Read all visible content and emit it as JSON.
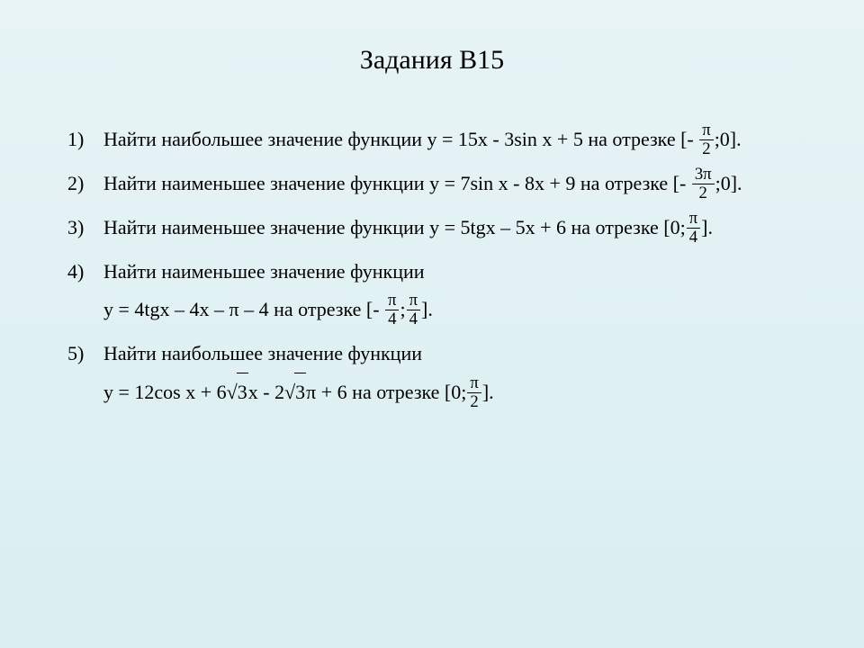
{
  "background": {
    "gradient_top": "#e8f4f6",
    "gradient_bottom": "#d9eef1"
  },
  "title": {
    "text": "Задания В15",
    "font_size": 30,
    "color": "#000000",
    "font_family": "Times New Roman"
  },
  "body": {
    "font_size": 22,
    "color": "#000000",
    "font_family": "Times New Roman"
  },
  "items": [
    {
      "number": "1)",
      "text_prefix": "Найти наибольшее значение функции y = 15x - 3",
      "trig1": "sin",
      "text_after_trig1": " x + 5 на отрезке [- ",
      "frac1_num": "π",
      "frac1_den": "2",
      "text_suffix": ";0]."
    },
    {
      "number": "2)",
      "text_prefix": "Найти наименьшее значение функции y = 7",
      "trig1": "sin",
      "text_after_trig1": " x - 8x + 9 на отрезке [- ",
      "frac1_num": "3π",
      "frac1_den": "2",
      "text_suffix": ";0]."
    },
    {
      "number": "3)",
      "text_prefix": "Найти наименьшее значение функции y = 5tgx – 5x + 6 на отрезке [0;",
      "frac1_num": "π",
      "frac1_den": "4",
      "text_suffix": "]."
    },
    {
      "number": "4)",
      "line1": "Найти наименьшее значение функции",
      "line2_prefix": "y = 4tgx – 4x – π – 4 на отрезке [- ",
      "frac1_num": "π",
      "frac1_den": "4",
      "mid": ";",
      "frac2_num": "π",
      "frac2_den": "4",
      "line2_suffix": "]."
    },
    {
      "number": "5)",
      "line1": "Найти наибольшее значение функции",
      "line2_a": "y = 12",
      "trig1": "cos",
      "line2_b": " x + 6",
      "sqrt1": "3",
      "line2_c": "x - 2",
      "sqrt2": "3",
      "line2_d": "π + 6 на отрезке [0;",
      "frac1_num": "π",
      "frac1_den": "2",
      "line2_suffix": "]."
    }
  ]
}
